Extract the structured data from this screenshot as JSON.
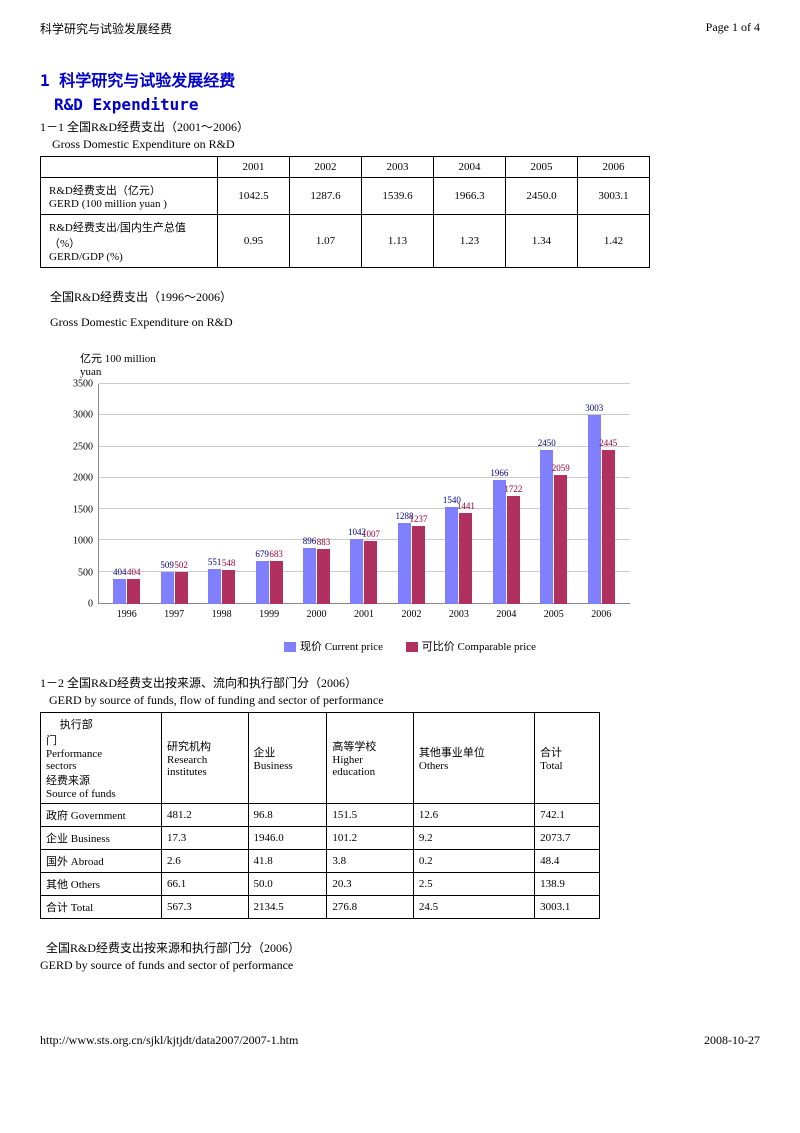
{
  "header": {
    "left": "科学研究与试验发展经费",
    "right": "Page 1 of 4"
  },
  "titles": {
    "t1": "1 科学研究与试验发展经费",
    "t2": "R&D Expenditure"
  },
  "sec1": {
    "l1": "1－1 全国R&D经费支出（2001～2006）",
    "l2": "    Gross Domestic Expenditure on R&D"
  },
  "table1": {
    "headers": [
      "",
      "2001",
      "2002",
      "2003",
      "2004",
      "2005",
      "2006"
    ],
    "rows": [
      [
        "R&D经费支出（亿元）\nGERD (100 million yuan )",
        "1042.5",
        "1287.6",
        "1539.6",
        "1966.3",
        "2450.0",
        "3003.1"
      ],
      [
        "R&D经费支出/国内生产总值（%）\nGERD/GDP (%)",
        "0.95",
        "1.07",
        "1.13",
        "1.23",
        "1.34",
        "1.42"
      ]
    ]
  },
  "chart_heading": {
    "l1": "全国R&D经费支出（1996～2006）",
    "l2": "Gross Domestic Expenditure on R&D"
  },
  "chart": {
    "ylabel": "亿元 100 million\nyuan",
    "ymax": 3500,
    "ytick_step": 500,
    "color1": "#8080ff",
    "color2": "#b03060",
    "categories": [
      "1996",
      "1997",
      "1998",
      "1999",
      "2000",
      "2001",
      "2002",
      "2003",
      "2004",
      "2005",
      "2006"
    ],
    "series1": [
      404,
      509,
      551,
      679,
      896,
      1042,
      1288,
      1540,
      1966,
      2450,
      3003
    ],
    "series2": [
      404,
      502,
      548,
      683,
      883,
      1007,
      1237,
      1441,
      1722,
      2059,
      2445
    ],
    "legend1": "现价 Current price",
    "legend2": "可比价 Comparable price"
  },
  "sec2": {
    "l1": "1－2 全国R&D经费支出按来源、流向和执行部门分（2006）",
    "l2": "   GERD by source of funds, flow of funding and sector of performance"
  },
  "table2": {
    "corner": "     执行部\n门\nPerformance\nsectors\n经费来源\nSource of funds",
    "cols": [
      "研究机构\nResearch\ninstitutes",
      "企业\nBusiness",
      "高等学校\nHigher\neducation",
      "其他事业单位\nOthers",
      "合计\nTotal"
    ],
    "rows": [
      [
        "政府 Government",
        "481.2",
        "96.8",
        "151.5",
        "12.6",
        "742.1"
      ],
      [
        "企业 Business",
        "17.3",
        "1946.0",
        "101.2",
        "9.2",
        "2073.7"
      ],
      [
        "国外 Abroad",
        "2.6",
        "41.8",
        "3.8",
        "0.2",
        "48.4"
      ],
      [
        "其他 Others",
        "66.1",
        "50.0",
        "20.3",
        "2.5",
        "138.9"
      ],
      [
        "合计 Total",
        "567.3",
        "2134.5",
        "276.8",
        "24.5",
        "3003.1"
      ]
    ]
  },
  "sec3": {
    "l1": "  全国R&D经费支出按来源和执行部门分（2006）",
    "l2": "GERD by source of funds and sector of performance"
  },
  "footer": {
    "url": "http://www.sts.org.cn/sjkl/kjtjdt/data2007/2007-1.htm",
    "date": "2008-10-27"
  }
}
